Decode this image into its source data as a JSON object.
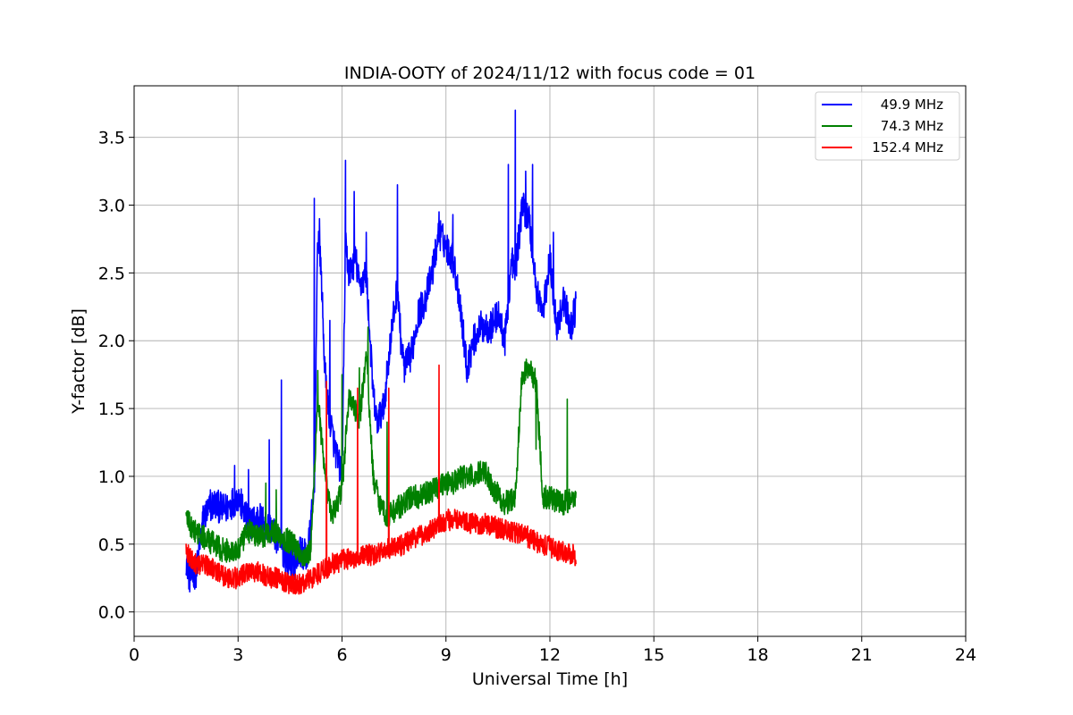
{
  "chart_data": {
    "type": "line",
    "title": "INDIA-OOTY of 2024/11/12 with focus code = 01",
    "xlabel": "Universal Time [h]",
    "ylabel": "Y-factor [dB]",
    "xlim": [
      0,
      24
    ],
    "ylim": [
      -0.18,
      3.88
    ],
    "xticks": [
      "0",
      "3",
      "6",
      "9",
      "12",
      "15",
      "18",
      "21",
      "24"
    ],
    "yticks": [
      "0.0",
      "0.5",
      "1.0",
      "1.5",
      "2.0",
      "2.5",
      "3.0",
      "3.5"
    ],
    "grid": true,
    "legend_position": "top-right",
    "series": [
      {
        "name": "49.9 MHz",
        "color": "#0000ff",
        "noise": 0.12,
        "x": [
          1.5,
          1.6,
          1.8,
          2.0,
          2.3,
          2.6,
          3.0,
          3.3,
          3.6,
          4.0,
          4.2,
          4.4,
          4.6,
          4.8,
          5.0,
          5.2,
          5.3,
          5.4,
          5.5,
          5.6,
          5.8,
          6.0,
          6.1,
          6.2,
          6.4,
          6.5,
          6.7,
          6.9,
          7.0,
          7.2,
          7.4,
          7.6,
          7.7,
          7.8,
          8.0,
          8.2,
          8.4,
          8.6,
          8.8,
          9.0,
          9.2,
          9.4,
          9.6,
          9.8,
          10.0,
          10.3,
          10.5,
          10.7,
          10.9,
          11.0,
          11.2,
          11.4,
          11.6,
          11.8,
          12.0,
          12.2,
          12.4,
          12.6,
          12.75
        ],
        "y": [
          0.4,
          0.25,
          0.3,
          0.7,
          0.8,
          0.75,
          0.85,
          0.65,
          0.7,
          0.6,
          0.5,
          0.4,
          0.35,
          0.45,
          0.4,
          0.9,
          2.8,
          2.5,
          1.8,
          1.5,
          1.2,
          1.0,
          2.7,
          2.5,
          2.6,
          2.4,
          2.5,
          1.6,
          1.4,
          1.5,
          2.0,
          2.4,
          2.0,
          1.8,
          1.9,
          2.2,
          2.3,
          2.5,
          2.8,
          2.7,
          2.6,
          2.3,
          1.8,
          2.0,
          2.1,
          2.1,
          2.2,
          2.0,
          2.6,
          2.5,
          3.0,
          2.9,
          2.4,
          2.2,
          2.6,
          2.1,
          2.3,
          2.1,
          2.25
        ],
        "spikes": [
          [
            2.2,
            0.9
          ],
          [
            2.9,
            1.08
          ],
          [
            3.3,
            1.05
          ],
          [
            3.9,
            1.27
          ],
          [
            4.25,
            1.71
          ],
          [
            5.2,
            3.05
          ],
          [
            5.35,
            2.9
          ],
          [
            5.65,
            2.15
          ],
          [
            6.1,
            3.33
          ],
          [
            6.35,
            3.1
          ],
          [
            6.7,
            2.8
          ],
          [
            7.6,
            3.15
          ],
          [
            8.8,
            2.95
          ],
          [
            9.2,
            2.93
          ],
          [
            10.8,
            3.3
          ],
          [
            11.0,
            3.7
          ],
          [
            11.3,
            3.25
          ],
          [
            11.5,
            3.3
          ],
          [
            12.1,
            2.8
          ]
        ]
      },
      {
        "name": "74.3 MHz",
        "color": "#008000",
        "noise": 0.09,
        "x": [
          1.5,
          1.7,
          2.0,
          2.3,
          2.6,
          3.0,
          3.3,
          3.6,
          4.0,
          4.3,
          4.6,
          4.9,
          5.1,
          5.3,
          5.5,
          5.7,
          6.0,
          6.2,
          6.5,
          6.7,
          6.9,
          7.1,
          7.3,
          7.5,
          7.8,
          8.0,
          8.3,
          8.6,
          8.9,
          9.2,
          9.5,
          9.8,
          10.1,
          10.4,
          10.7,
          11.0,
          11.2,
          11.4,
          11.6,
          11.8,
          12.0,
          12.3,
          12.6,
          12.75
        ],
        "y": [
          0.7,
          0.6,
          0.55,
          0.5,
          0.45,
          0.45,
          0.6,
          0.55,
          0.6,
          0.55,
          0.5,
          0.4,
          0.45,
          1.6,
          1.0,
          0.7,
          0.9,
          1.6,
          1.4,
          1.9,
          1.0,
          0.8,
          0.7,
          0.75,
          0.8,
          0.85,
          0.85,
          0.9,
          0.95,
          0.95,
          1.0,
          1.0,
          1.05,
          0.9,
          0.8,
          0.85,
          1.75,
          1.8,
          1.7,
          0.85,
          0.85,
          0.8,
          0.82,
          0.85
        ],
        "spikes": [
          [
            3.8,
            0.95
          ],
          [
            4.1,
            0.9
          ],
          [
            5.3,
            1.78
          ],
          [
            6.0,
            1.75
          ],
          [
            6.5,
            1.8
          ],
          [
            6.75,
            2.1
          ],
          [
            7.3,
            1.4
          ],
          [
            11.6,
            1.2
          ],
          [
            12.5,
            1.57
          ]
        ]
      },
      {
        "name": "152.4 MHz",
        "color": "#ff0000",
        "noise": 0.08,
        "x": [
          1.5,
          1.8,
          2.1,
          2.4,
          2.7,
          3.0,
          3.3,
          3.6,
          3.9,
          4.2,
          4.5,
          4.8,
          5.1,
          5.4,
          5.7,
          6.0,
          6.3,
          6.6,
          6.9,
          7.2,
          7.5,
          7.8,
          8.1,
          8.4,
          8.7,
          9.0,
          9.3,
          9.6,
          9.9,
          10.2,
          10.5,
          10.8,
          11.1,
          11.4,
          11.7,
          12.0,
          12.3,
          12.6,
          12.75
        ],
        "y": [
          0.45,
          0.35,
          0.35,
          0.3,
          0.25,
          0.25,
          0.3,
          0.3,
          0.25,
          0.25,
          0.2,
          0.2,
          0.25,
          0.3,
          0.35,
          0.38,
          0.4,
          0.42,
          0.42,
          0.45,
          0.48,
          0.5,
          0.55,
          0.58,
          0.62,
          0.68,
          0.68,
          0.65,
          0.65,
          0.65,
          0.62,
          0.6,
          0.58,
          0.55,
          0.5,
          0.48,
          0.45,
          0.43,
          0.42
        ],
        "spikes": [
          [
            5.55,
            1.7
          ],
          [
            6.45,
            1.65
          ],
          [
            7.35,
            1.65
          ],
          [
            8.8,
            1.82
          ]
        ]
      }
    ]
  }
}
